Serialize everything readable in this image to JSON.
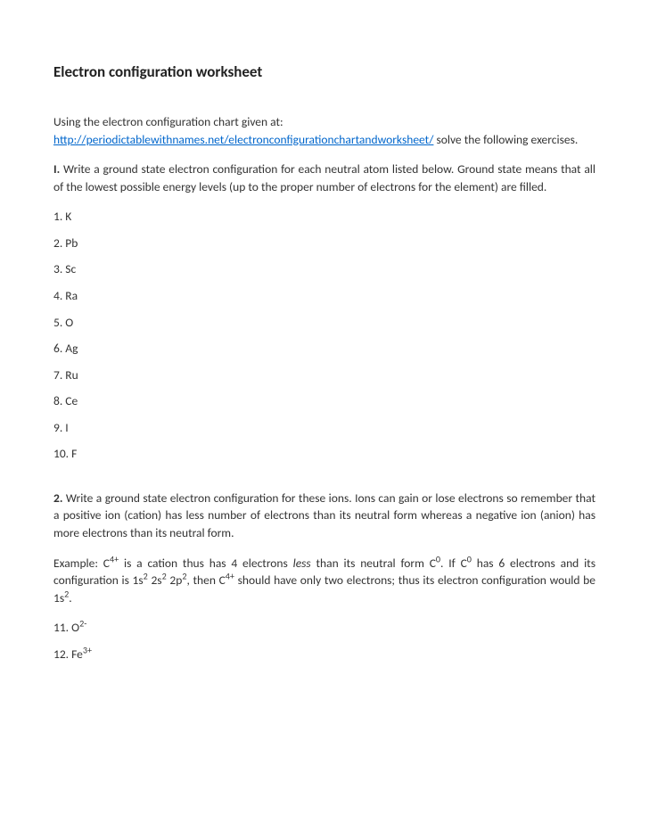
{
  "title": "Electron configuration worksheet",
  "intro_line1": "Using the electron configuration chart given at:",
  "intro_link": "http://periodictablewithnames.net/electronconfigurationchartandworksheet/",
  "intro_line2_tail": " solve the following exercises.",
  "section1_label": "I.",
  "section1_text": " Write a ground state electron configuration for each neutral atom listed below. Ground state means that all of the lowest possible energy levels (up to the proper number of electrons for the element) are filled.",
  "items1": [
    "1. K",
    "2. Pb",
    "3. Sc",
    "4. Ra",
    "5. O",
    "6. Ag",
    "7. Ru",
    "8. Ce",
    "9. I",
    "10. F"
  ],
  "section2_label": "2.",
  "section2_text": " Write a ground state electron configuration for these ions. Ions can gain or lose electrons so remember that a positive ion (cation) has less number of electrons than its neutral form whereas a negative ion (anion) has more electrons than its neutral form.",
  "example": {
    "pre": "Example: C",
    "sup1": "4+",
    "t1": " is a cation thus has 4 electrons ",
    "less": "less",
    "t2": " than its neutral form C",
    "sup2": "0",
    "t3": ". If C",
    "sup3": "0",
    "t4": " has 6 electrons and its configuration is 1s",
    "sup4": "2",
    "t5": " 2s",
    "sup5": "2",
    "t6": " 2p",
    "sup6": "2",
    "t7": ", then C",
    "sup7": "4+",
    "t8": " should have only two electrons; thus its electron configuration would be 1s",
    "sup8": "2",
    "t9": "."
  },
  "item11_pre": "11.  O",
  "item11_sup": "2-",
  "item12_pre": "12. Fe",
  "item12_sup": "3+"
}
